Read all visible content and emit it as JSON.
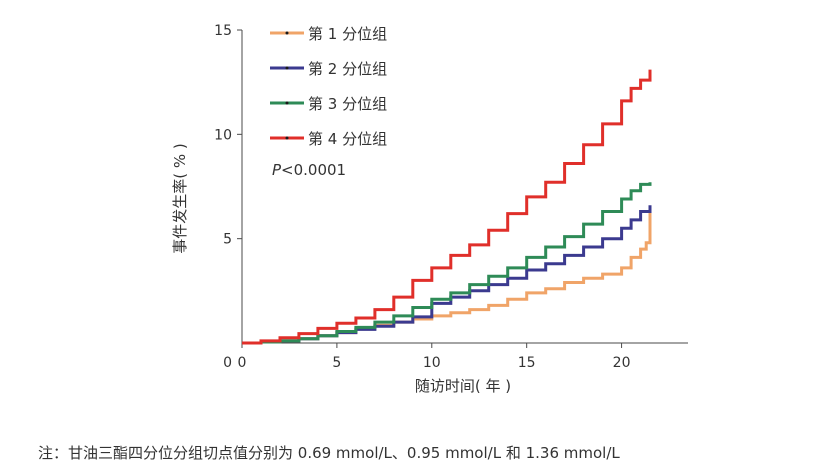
{
  "chart_data": {
    "type": "line",
    "step": true,
    "title": "",
    "xlabel": "随访时间( 年 )",
    "ylabel": "事件发生率( % )",
    "xlim": [
      0,
      23.5
    ],
    "ylim": [
      0,
      15
    ],
    "xticks": [
      0,
      5,
      10,
      15,
      20
    ],
    "yticks": [
      5,
      10,
      15
    ],
    "y_zero_label": "0",
    "legend_position": "top-left",
    "annotation": {
      "prefix": "P",
      "value": "<0.0001"
    },
    "footnote": "注：甘油三酯四分位分组切点值分别为 0.69 mmol/L、0.95 mmol/L 和 1.36 mmol/L",
    "series": [
      {
        "name": "第 1 分位组",
        "color": "#f0a468",
        "x": [
          0,
          1,
          2,
          3,
          4,
          5,
          6,
          7,
          8,
          9,
          10,
          11,
          12,
          13,
          14,
          15,
          16,
          17,
          18,
          19,
          20,
          20.5,
          21,
          21.3,
          21.5
        ],
        "y": [
          0,
          0.05,
          0.1,
          0.2,
          0.35,
          0.5,
          0.7,
          0.85,
          1.0,
          1.15,
          1.3,
          1.45,
          1.6,
          1.8,
          2.1,
          2.4,
          2.6,
          2.9,
          3.1,
          3.3,
          3.6,
          4.1,
          4.5,
          4.8,
          6.5
        ]
      },
      {
        "name": "第 2 分位组",
        "color": "#3b3a8f",
        "x": [
          0,
          1,
          2,
          3,
          4,
          5,
          6,
          7,
          8,
          9,
          10,
          11,
          12,
          13,
          14,
          15,
          16,
          17,
          18,
          19,
          20,
          20.5,
          21,
          21.5
        ],
        "y": [
          0,
          0.05,
          0.1,
          0.2,
          0.35,
          0.5,
          0.65,
          0.8,
          1.0,
          1.25,
          1.9,
          2.2,
          2.5,
          2.8,
          3.1,
          3.5,
          3.8,
          4.2,
          4.6,
          5.0,
          5.5,
          5.9,
          6.3,
          6.6
        ]
      },
      {
        "name": "第 3 分位组",
        "color": "#2e8b57",
        "x": [
          0,
          1,
          2,
          3,
          4,
          5,
          6,
          7,
          8,
          9,
          10,
          11,
          12,
          13,
          14,
          15,
          16,
          17,
          18,
          19,
          20,
          20.5,
          21,
          21.5
        ],
        "y": [
          0,
          0.05,
          0.1,
          0.2,
          0.35,
          0.55,
          0.75,
          1.0,
          1.3,
          1.7,
          2.1,
          2.4,
          2.8,
          3.2,
          3.6,
          4.1,
          4.6,
          5.1,
          5.7,
          6.3,
          6.9,
          7.3,
          7.6,
          7.7
        ]
      },
      {
        "name": "第 4 分位组",
        "color": "#e02f2a",
        "x": [
          0,
          1,
          2,
          3,
          4,
          5,
          6,
          7,
          8,
          9,
          10,
          11,
          12,
          13,
          14,
          15,
          16,
          17,
          18,
          19,
          20,
          20.5,
          21,
          21.5
        ],
        "y": [
          0,
          0.1,
          0.25,
          0.45,
          0.7,
          0.95,
          1.2,
          1.6,
          2.2,
          3.0,
          3.6,
          4.2,
          4.7,
          5.4,
          6.2,
          7.0,
          7.7,
          8.6,
          9.5,
          10.5,
          11.6,
          12.2,
          12.6,
          13.1
        ]
      }
    ]
  }
}
